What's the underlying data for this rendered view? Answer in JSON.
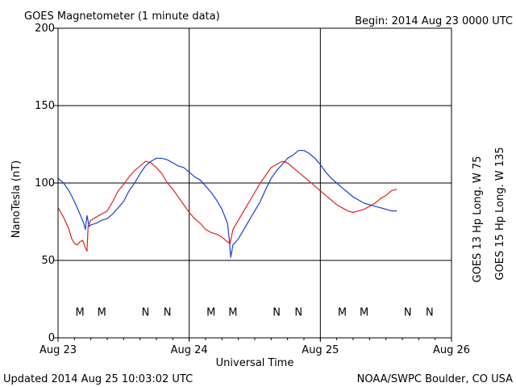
{
  "header": {
    "title": "GOES Magnetometer (1 minute data)",
    "begin": "Begin:  2014 Aug 23 0000 UTC"
  },
  "footer": {
    "updated": "Updated 2014 Aug 25 10:03:02 UTC",
    "source": "NOAA/SWPC Boulder, CO USA"
  },
  "colors": {
    "goes13": "#e0201f",
    "goes15": "#1a3fd0"
  },
  "chart_data": {
    "type": "line",
    "xlabel": "Universal Time",
    "ylabel": "NanoTesla (nT)",
    "xlim": [
      0,
      72
    ],
    "ylim": [
      0,
      200
    ],
    "x_unit": "hours since 2014 Aug 23 0000 UTC",
    "x_ticks": [
      {
        "x": 0,
        "label": "Aug 23"
      },
      {
        "x": 24,
        "label": "Aug 24"
      },
      {
        "x": 48,
        "label": "Aug 25"
      },
      {
        "x": 72,
        "label": "Aug 26"
      }
    ],
    "y_ticks": [
      0,
      50,
      100,
      150,
      200
    ],
    "grid": true,
    "legend_position": "right, vertical",
    "series": [
      {
        "name": "GOES 13 Hp  Long. W 75",
        "color": "#e0201f",
        "x": [
          0,
          1,
          2,
          2.5,
          3,
          3.5,
          4,
          4.5,
          5,
          5.3,
          5.5,
          6,
          7,
          8,
          9,
          10,
          11,
          12,
          13,
          14,
          15,
          16,
          17,
          18,
          19,
          20,
          21,
          22,
          23,
          24,
          25,
          26,
          27,
          28,
          29,
          30,
          31,
          31.5,
          32,
          33,
          34,
          35,
          36,
          37,
          38,
          39,
          40,
          41,
          42,
          43,
          44,
          45,
          46,
          47,
          48,
          49,
          50,
          51,
          52,
          53,
          54,
          55,
          56,
          57,
          58,
          59,
          60,
          61,
          62
        ],
        "y": [
          84,
          78,
          70,
          64,
          61,
          60,
          62,
          63,
          58,
          56,
          72,
          76,
          78,
          80,
          82,
          88,
          95,
          99,
          104,
          108,
          111,
          114,
          113,
          110,
          106,
          100,
          96,
          91,
          86,
          81,
          77,
          74,
          70,
          68,
          67,
          65,
          62,
          61,
          70,
          76,
          82,
          88,
          94,
          100,
          105,
          110,
          112,
          114,
          113,
          110,
          107,
          104,
          101,
          98,
          95,
          92,
          89,
          86,
          84,
          82,
          81,
          82,
          83,
          85,
          87,
          90,
          92,
          95,
          96
        ]
      },
      {
        "name": "GOES 15 Hp  Long. W 135",
        "color": "#1a3fd0",
        "x": [
          0,
          1,
          2,
          3,
          4,
          4.7,
          5,
          5.3,
          5.7,
          6,
          7,
          8,
          9,
          10,
          11,
          12,
          13,
          14,
          15,
          16,
          17,
          18,
          19,
          20,
          21,
          22,
          23,
          24,
          25,
          26,
          27,
          28,
          29,
          30,
          31,
          31.3,
          31.6,
          32,
          33,
          34,
          35,
          36,
          37,
          38,
          39,
          40,
          41,
          42,
          43,
          44,
          45,
          46,
          47,
          48,
          49,
          50,
          51,
          52,
          53,
          54,
          55,
          56,
          57,
          58,
          59,
          60,
          61,
          62
        ],
        "y": [
          103,
          100,
          95,
          88,
          80,
          74,
          70,
          79,
          72,
          73,
          74,
          76,
          77,
          80,
          84,
          88,
          95,
          100,
          106,
          111,
          114,
          116,
          116,
          115,
          113,
          111,
          110,
          107,
          104,
          102,
          98,
          94,
          89,
          83,
          74,
          65,
          52,
          60,
          64,
          70,
          76,
          82,
          88,
          96,
          103,
          108,
          112,
          116,
          118,
          121,
          121,
          119,
          116,
          112,
          107,
          103,
          100,
          97,
          94,
          91,
          89,
          87,
          86,
          85,
          84,
          83,
          82,
          82
        ]
      }
    ],
    "markers": [
      {
        "label": "M",
        "x": 4,
        "series": "GOES 13 Hp  Long. W 75"
      },
      {
        "label": "M",
        "x": 8,
        "series": "GOES 15 Hp  Long. W 135"
      },
      {
        "label": "N",
        "x": 16,
        "series": "GOES 13 Hp  Long. W 75"
      },
      {
        "label": "N",
        "x": 20,
        "series": "GOES 15 Hp  Long. W 135"
      },
      {
        "label": "M",
        "x": 28,
        "series": "GOES 13 Hp  Long. W 75"
      },
      {
        "label": "M",
        "x": 32,
        "series": "GOES 15 Hp  Long. W 135"
      },
      {
        "label": "N",
        "x": 40,
        "series": "GOES 13 Hp  Long. W 75"
      },
      {
        "label": "N",
        "x": 44,
        "series": "GOES 15 Hp  Long. W 135"
      },
      {
        "label": "M",
        "x": 52,
        "series": "GOES 13 Hp  Long. W 75"
      },
      {
        "label": "M",
        "x": 56,
        "series": "GOES 15 Hp  Long. W 135"
      },
      {
        "label": "N",
        "x": 64,
        "series": "GOES 13 Hp  Long. W 75"
      },
      {
        "label": "N",
        "x": 68,
        "series": "GOES 15 Hp  Long. W 135"
      }
    ],
    "marker_level": 17
  }
}
